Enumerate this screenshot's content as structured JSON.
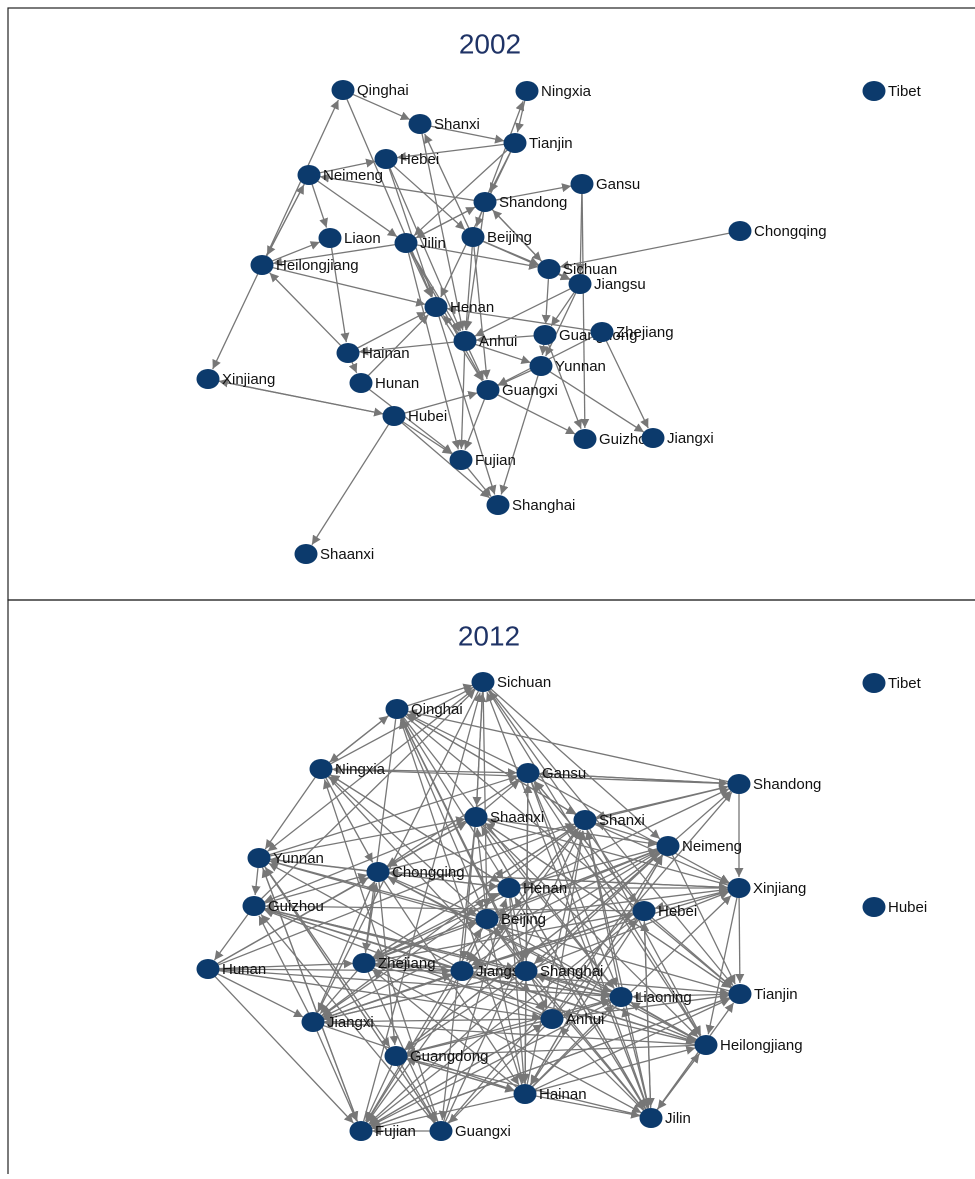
{
  "panels": [
    {
      "title": "2002",
      "nodes": [
        {
          "label": "Qinghai"
        },
        {
          "label": "Ningxia"
        },
        {
          "label": "Tibet"
        },
        {
          "label": "Shanxi"
        },
        {
          "label": "Tianjin"
        },
        {
          "label": "Hebei"
        },
        {
          "label": "Neimeng"
        },
        {
          "label": "Gansu"
        },
        {
          "label": "Shandong"
        },
        {
          "label": "Chongqing"
        },
        {
          "label": "Liaon"
        },
        {
          "label": "Jilin"
        },
        {
          "label": "Beijing"
        },
        {
          "label": "Heilongjiang"
        },
        {
          "label": "Sichuan"
        },
        {
          "label": "Jiangsu"
        },
        {
          "label": "Henan"
        },
        {
          "label": "Guangdong"
        },
        {
          "label": "Zhejiang"
        },
        {
          "label": "Anhui"
        },
        {
          "label": "Hainan"
        },
        {
          "label": "Yunnan"
        },
        {
          "label": "Xinjiang"
        },
        {
          "label": "Hunan"
        },
        {
          "label": "Guangxi"
        },
        {
          "label": "Hubei"
        },
        {
          "label": "Guizhou"
        },
        {
          "label": "Jiangxi"
        },
        {
          "label": "Fujian"
        },
        {
          "label": "Shanghai"
        },
        {
          "label": "Shaanxi"
        }
      ]
    },
    {
      "title": "2012",
      "nodes": [
        {
          "label": "Sichuan"
        },
        {
          "label": "Tibet"
        },
        {
          "label": "Qinghai"
        },
        {
          "label": "Ningxia"
        },
        {
          "label": "Gansu"
        },
        {
          "label": "Shandong"
        },
        {
          "label": "Shaanxi"
        },
        {
          "label": "Shanxi"
        },
        {
          "label": "Neimeng"
        },
        {
          "label": "Yunnan"
        },
        {
          "label": "Chongqing"
        },
        {
          "label": "Henan"
        },
        {
          "label": "Xinjiang"
        },
        {
          "label": "Guizhou"
        },
        {
          "label": "Hubei"
        },
        {
          "label": "Beijing"
        },
        {
          "label": "Hebei"
        },
        {
          "label": "Hunan"
        },
        {
          "label": "Zhejiang"
        },
        {
          "label": "Jiangsu"
        },
        {
          "label": "Shanghai"
        },
        {
          "label": "Liaoning"
        },
        {
          "label": "Tianjin"
        },
        {
          "label": "Jiangxi"
        },
        {
          "label": "Anhui"
        },
        {
          "label": "Heilongjiang"
        },
        {
          "label": "Guangdong"
        },
        {
          "label": "Hainan"
        },
        {
          "label": "Jilin"
        },
        {
          "label": "Fujian"
        },
        {
          "label": "Guangxi"
        }
      ]
    }
  ]
}
